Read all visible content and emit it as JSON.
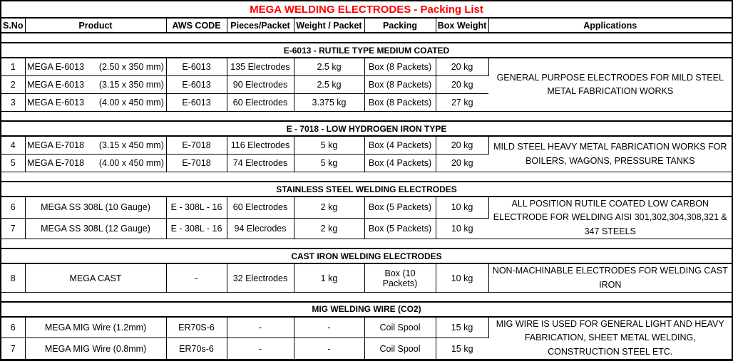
{
  "title": "MEGA WELDING ELECTRODES - Packing List",
  "title_color": "#FF0000",
  "columns": [
    "S.No",
    "Product",
    "AWS CODE",
    "Pieces/Packet",
    "Weight / Packet",
    "Packing",
    "Box Weight",
    "Applications"
  ],
  "sections": [
    {
      "heading": "E-6013 - RUTILE TYPE MEDIUM COATED",
      "application": "GENERAL PURPOSE ELECTRODES FOR MILD STEEL METAL FABRICATION WORKS",
      "rows": [
        {
          "sno": "1",
          "product": "MEGA E-6013      (2.50 x 350 mm)",
          "aws": "E-6013",
          "pieces": "135 Electrodes",
          "weight": "2.5 kg",
          "packing": "Box (8 Packets)",
          "box_weight": "20 kg"
        },
        {
          "sno": "2",
          "product": "MEGA E-6013      (3.15 x 350 mm)",
          "aws": "E-6013",
          "pieces": "90 Electrodes",
          "weight": "2.5 kg",
          "packing": "Box (8 Packets)",
          "box_weight": "20 kg"
        },
        {
          "sno": "3",
          "product": "MEGA E-6013      (4.00 x 450 mm)",
          "aws": "E-6013",
          "pieces": "60 Electrodes",
          "weight": "3.375 kg",
          "packing": "Box (8 Packets)",
          "box_weight": "27 kg"
        }
      ]
    },
    {
      "heading": "E - 7018 - LOW HYDROGEN IRON TYPE",
      "application": "MILD STEEL HEAVY METAL FABRICATION WORKS FOR BOILERS, WAGONS, PRESSURE TANKS",
      "rows": [
        {
          "sno": "4",
          "product": "MEGA E-7018      (3.15 x 450 mm)",
          "aws": "E-7018",
          "pieces": "116 Electrodes",
          "weight": "5 kg",
          "packing": "Box (4 Packets)",
          "box_weight": "20 kg"
        },
        {
          "sno": "5",
          "product": "MEGA E-7018      (4.00 x 450 mm)",
          "aws": "E-7018",
          "pieces": "74 Electrodes",
          "weight": "5 kg",
          "packing": "Box (4 Packets)",
          "box_weight": "20 kg"
        }
      ]
    },
    {
      "heading": "STAINLESS STEEL WELDING ELECTRODES",
      "application": "ALL POSITION RUTILE COATED LOW CARBON ELECTRODE FOR WELDING AISI 301,302,304,308,321 & 347 STEELS",
      "rows": [
        {
          "sno": "6",
          "product": "MEGA SS 308L (10 Gauge)",
          "aws": "E - 308L - 16",
          "pieces": "60 Electrodes",
          "weight": "2 kg",
          "packing": "Box (5 Packets)",
          "box_weight": "10 kg"
        },
        {
          "sno": "7",
          "product": "MEGA SS 308L (12 Gauge)",
          "aws": "E - 308L - 16",
          "pieces": "94 Elecrodes",
          "weight": "2 kg",
          "packing": "Box (5 Packets)",
          "box_weight": "10 kg"
        }
      ]
    },
    {
      "heading": "CAST IRON WELDING ELECTRODES",
      "application": "NON-MACHINABLE ELECTRODES FOR WELDING CAST IRON",
      "rows": [
        {
          "sno": "8",
          "product": "MEGA CAST",
          "aws": "-",
          "pieces": "32 Electrodes",
          "weight": "1 kg",
          "packing": "Box (10 Packets)",
          "box_weight": "10 kg"
        }
      ]
    },
    {
      "heading": "MIG WELDING WIRE (CO2)",
      "application": "MIG WIRE IS USED FOR GENERAL LIGHT AND HEAVY FABRICATION, SHEET METAL WELDING, CONSTRUCTION STEEL ETC.",
      "rows": [
        {
          "sno": "6",
          "product": "MEGA MIG Wire  (1.2mm)",
          "aws": "ER70S-6",
          "pieces": "-",
          "weight": "-",
          "packing": "Coil Spool",
          "box_weight": "15 kg"
        },
        {
          "sno": "7",
          "product": "MEGA MIG Wire (0.8mm)",
          "aws": "ER70s-6",
          "pieces": "-",
          "weight": "-",
          "packing": "Coil Spool",
          "box_weight": "15 kg"
        }
      ]
    }
  ]
}
